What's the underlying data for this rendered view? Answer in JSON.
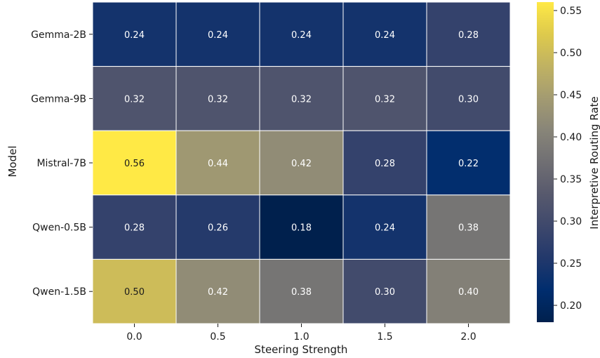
{
  "chart_data": {
    "type": "heatmap",
    "title": "",
    "xlabel": "Steering Strength",
    "ylabel": "Model",
    "x_categories": [
      "0.0",
      "0.5",
      "1.0",
      "1.5",
      "2.0"
    ],
    "y_categories": [
      "Gemma-2B",
      "Gemma-9B",
      "Mistral-7B",
      "Qwen-0.5B",
      "Qwen-1.5B"
    ],
    "values": [
      [
        0.24,
        0.24,
        0.24,
        0.24,
        0.28
      ],
      [
        0.32,
        0.32,
        0.32,
        0.32,
        0.3
      ],
      [
        0.56,
        0.44,
        0.42,
        0.28,
        0.22
      ],
      [
        0.28,
        0.26,
        0.18,
        0.24,
        0.38
      ],
      [
        0.5,
        0.42,
        0.38,
        0.3,
        0.4
      ]
    ],
    "value_labels": [
      [
        "0.24",
        "0.24",
        "0.24",
        "0.24",
        "0.28"
      ],
      [
        "0.32",
        "0.32",
        "0.32",
        "0.32",
        "0.30"
      ],
      [
        "0.56",
        "0.44",
        "0.42",
        "0.28",
        "0.22"
      ],
      [
        "0.28",
        "0.26",
        "0.18",
        "0.24",
        "0.38"
      ],
      [
        "0.50",
        "0.42",
        "0.38",
        "0.30",
        "0.40"
      ]
    ],
    "colormap": "cividis",
    "colorbar": {
      "label": "Interpretive Routing Rate",
      "range": [
        0.18,
        0.56
      ],
      "ticks": [
        0.2,
        0.25,
        0.3,
        0.35,
        0.4,
        0.45,
        0.5,
        0.55
      ],
      "tick_labels": [
        "0.20",
        "0.25",
        "0.30",
        "0.35",
        "0.40",
        "0.45",
        "0.50",
        "0.55"
      ]
    },
    "grid_line_color": "#ffffff",
    "annotation_colors": {
      "dark_text": "#1a1a1a",
      "light_text": "#ffffff"
    }
  }
}
